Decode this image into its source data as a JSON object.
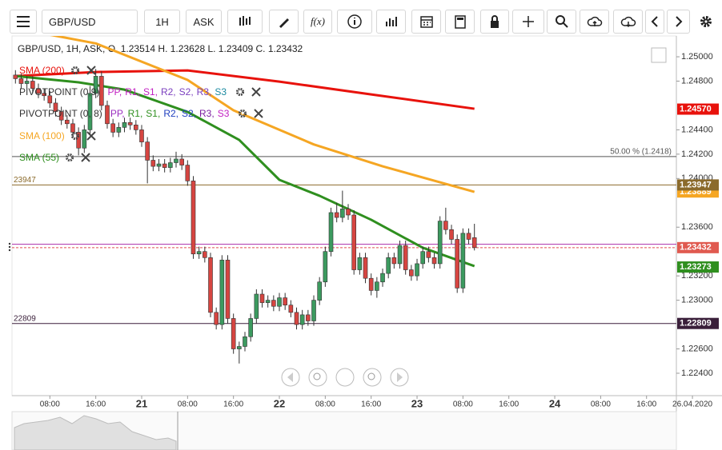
{
  "toolbar": {
    "symbol": "GBP/USD",
    "timeframe": "1H",
    "price_side": "ASK",
    "function_button": "f(x)"
  },
  "chart_data": {
    "type": "candlestick",
    "info_line": "GBP/USD, 1H, ASK,  O. 1.23514 H. 1.23628 L. 1.23409 C. 1.23432",
    "up_color": "#3c9a5f",
    "down_color": "#d64541",
    "xlim": [
      1.4,
      117.2
    ],
    "ylim": [
      1.22216,
      1.25171
    ],
    "yticks": [
      {
        "value": 1.25,
        "label": "1.25000"
      },
      {
        "value": 1.248,
        "label": "1.24800"
      },
      {
        "value": 1.244,
        "label": "1.24400"
      },
      {
        "value": 1.242,
        "label": "1.24200"
      },
      {
        "value": 1.24,
        "label": "1.24000"
      },
      {
        "value": 1.236,
        "label": "1.23600"
      },
      {
        "value": 1.232,
        "label": "1.23200"
      },
      {
        "value": 1.23,
        "label": "1.23000"
      },
      {
        "value": 1.226,
        "label": "1.22600"
      },
      {
        "value": 1.224,
        "label": "1.22400"
      }
    ],
    "xticks": [
      {
        "value": 8,
        "label": "08:00"
      },
      {
        "value": 16,
        "label": "16:00"
      },
      {
        "value": 24,
        "label": "21"
      },
      {
        "value": 32,
        "label": "08:00"
      },
      {
        "value": 40,
        "label": "16:00"
      },
      {
        "value": 48,
        "label": "22"
      },
      {
        "value": 56,
        "label": "08:00"
      },
      {
        "value": 64,
        "label": "16:00"
      },
      {
        "value": 72,
        "label": "23"
      },
      {
        "value": 80,
        "label": "08:00"
      },
      {
        "value": 88,
        "label": "16:00"
      },
      {
        "value": 96,
        "label": "24"
      },
      {
        "value": 104,
        "label": "08:00"
      },
      {
        "value": 112,
        "label": "16:00"
      },
      {
        "value": 120,
        "label": "26.04.2020"
      }
    ],
    "x": [
      2,
      3,
      4,
      5,
      6,
      7,
      8,
      9,
      10,
      11,
      12,
      13,
      14,
      15,
      16,
      17,
      18,
      19,
      20,
      21,
      22,
      23,
      24,
      25,
      26,
      27,
      28,
      29,
      30,
      31,
      32,
      33,
      34,
      35,
      36,
      37,
      38,
      39,
      40,
      41,
      42,
      43,
      44,
      45,
      46,
      47,
      48,
      49,
      50,
      51,
      52,
      53,
      54,
      55,
      56,
      57,
      58,
      59,
      60,
      61,
      62,
      63,
      64,
      65,
      66,
      67,
      68,
      69,
      70,
      71,
      72,
      73,
      74,
      75,
      76,
      77,
      78,
      79,
      80,
      81,
      82
    ],
    "candles": [
      [
        1.2485,
        1.2489,
        1.2478,
        1.2482
      ],
      [
        1.2482,
        1.2486,
        1.2474,
        1.2478
      ],
      [
        1.2478,
        1.2484,
        1.2474,
        1.248
      ],
      [
        1.248,
        1.2484,
        1.247,
        1.2474
      ],
      [
        1.2474,
        1.2478,
        1.2466,
        1.247
      ],
      [
        1.247,
        1.2474,
        1.2464,
        1.2468
      ],
      [
        1.2468,
        1.2472,
        1.2458,
        1.2462
      ],
      [
        1.2462,
        1.2466,
        1.2451,
        1.2455
      ],
      [
        1.2455,
        1.2459,
        1.2444,
        1.2448
      ],
      [
        1.2448,
        1.2452,
        1.2441,
        1.2445
      ],
      [
        1.2445,
        1.2449,
        1.2434,
        1.2438
      ],
      [
        1.2438,
        1.2442,
        1.2419,
        1.2425
      ],
      [
        1.2425,
        1.2444,
        1.2421,
        1.244
      ],
      [
        1.244,
        1.2476,
        1.2436,
        1.247
      ],
      [
        1.247,
        1.249,
        1.2466,
        1.2484
      ],
      [
        1.2484,
        1.2488,
        1.2456,
        1.246
      ],
      [
        1.246,
        1.2464,
        1.2441,
        1.2445
      ],
      [
        1.2445,
        1.2449,
        1.2434,
        1.2438
      ],
      [
        1.2438,
        1.2446,
        1.2434,
        1.2442
      ],
      [
        1.2442,
        1.245,
        1.2438,
        1.2446
      ],
      [
        1.2446,
        1.245,
        1.244,
        1.2444
      ],
      [
        1.2444,
        1.2448,
        1.2436,
        1.244
      ],
      [
        1.244,
        1.2444,
        1.2426,
        1.243
      ],
      [
        1.243,
        1.2434,
        1.2396,
        1.2415
      ],
      [
        1.2415,
        1.2419,
        1.2406,
        1.241
      ],
      [
        1.241,
        1.2416,
        1.2406,
        1.2412
      ],
      [
        1.2412,
        1.2416,
        1.2405,
        1.2409
      ],
      [
        1.2409,
        1.2417,
        1.2405,
        1.2413
      ],
      [
        1.2413,
        1.2422,
        1.2409,
        1.2416
      ],
      [
        1.2416,
        1.242,
        1.2407,
        1.2411
      ],
      [
        1.2411,
        1.2415,
        1.2394,
        1.2398
      ],
      [
        1.2398,
        1.2402,
        1.2334,
        1.2338
      ],
      [
        1.2338,
        1.2344,
        1.2334,
        1.234
      ],
      [
        1.234,
        1.2344,
        1.2331,
        1.2335
      ],
      [
        1.2335,
        1.2339,
        1.2286,
        1.229
      ],
      [
        1.229,
        1.2294,
        1.2276,
        1.228
      ],
      [
        1.228,
        1.2337,
        1.2276,
        1.2333
      ],
      [
        1.2333,
        1.2337,
        1.2281,
        1.2285
      ],
      [
        1.2285,
        1.2289,
        1.2256,
        1.226
      ],
      [
        1.226,
        1.2266,
        1.2248,
        1.2262
      ],
      [
        1.2262,
        1.2274,
        1.2258,
        1.227
      ],
      [
        1.227,
        1.2289,
        1.2266,
        1.2285
      ],
      [
        1.2285,
        1.2309,
        1.2281,
        1.2305
      ],
      [
        1.2305,
        1.2309,
        1.2294,
        1.2298
      ],
      [
        1.2298,
        1.2304,
        1.2294,
        1.23
      ],
      [
        1.23,
        1.2304,
        1.2291,
        1.2295
      ],
      [
        1.2295,
        1.2306,
        1.2291,
        1.2302
      ],
      [
        1.2302,
        1.2306,
        1.2292,
        1.2296
      ],
      [
        1.2296,
        1.23,
        1.2286,
        1.229
      ],
      [
        1.229,
        1.2294,
        1.2276,
        1.228
      ],
      [
        1.228,
        1.2292,
        1.2276,
        1.2288
      ],
      [
        1.2288,
        1.2292,
        1.2279,
        1.2283
      ],
      [
        1.2283,
        1.2304,
        1.2279,
        1.23
      ],
      [
        1.23,
        1.2319,
        1.2296,
        1.2315
      ],
      [
        1.2315,
        1.2344,
        1.2311,
        1.234
      ],
      [
        1.234,
        1.2376,
        1.2336,
        1.2372
      ],
      [
        1.2372,
        1.238,
        1.2364,
        1.2368
      ],
      [
        1.2368,
        1.239,
        1.2364,
        1.2375
      ],
      [
        1.2375,
        1.2379,
        1.2366,
        1.237
      ],
      [
        1.237,
        1.2374,
        1.2321,
        1.2325
      ],
      [
        1.2325,
        1.2339,
        1.2321,
        1.2335
      ],
      [
        1.2335,
        1.2339,
        1.2314,
        1.2318
      ],
      [
        1.2318,
        1.2322,
        1.2304,
        1.2308
      ],
      [
        1.2308,
        1.2319,
        1.2302,
        1.2315
      ],
      [
        1.2315,
        1.2326,
        1.2311,
        1.2322
      ],
      [
        1.2322,
        1.2339,
        1.2318,
        1.2335
      ],
      [
        1.2335,
        1.2339,
        1.2326,
        1.233
      ],
      [
        1.233,
        1.2349,
        1.2326,
        1.2345
      ],
      [
        1.2345,
        1.2349,
        1.2321,
        1.2325
      ],
      [
        1.2325,
        1.2329,
        1.2316,
        1.232
      ],
      [
        1.232,
        1.2334,
        1.2316,
        1.233
      ],
      [
        1.233,
        1.2344,
        1.2326,
        1.234
      ],
      [
        1.234,
        1.2344,
        1.2331,
        1.2335
      ],
      [
        1.2335,
        1.2339,
        1.2326,
        1.233
      ],
      [
        1.233,
        1.2369,
        1.2326,
        1.2365
      ],
      [
        1.2365,
        1.2376,
        1.2354,
        1.2358
      ],
      [
        1.2358,
        1.2362,
        1.2346,
        1.235
      ],
      [
        1.235,
        1.2354,
        1.2306,
        1.231
      ],
      [
        1.231,
        1.2359,
        1.2306,
        1.2355
      ],
      [
        1.2355,
        1.2359,
        1.2346,
        1.235
      ],
      [
        1.23514,
        1.23628,
        1.23409,
        1.23432
      ]
    ],
    "series": [
      {
        "name": "SMA (200)",
        "color": "#e8120c",
        "x": [
          2,
          16,
          32,
          48,
          64,
          82
        ],
        "values": [
          1.24842,
          1.24875,
          1.24888,
          1.24796,
          1.24691,
          1.24573
        ]
      },
      {
        "name": "SMA (100)",
        "color": "#f5a623",
        "x": [
          7,
          16,
          32,
          40,
          54,
          66,
          82
        ],
        "values": [
          1.2519,
          1.2511,
          1.2481,
          1.2456,
          1.2428,
          1.241,
          1.2389
        ]
      },
      {
        "name": "SMA (55)",
        "color": "#2f8f1f",
        "x": [
          2,
          13,
          21,
          32,
          41,
          48,
          55,
          64,
          73,
          82
        ],
        "values": [
          1.24842,
          1.2479,
          1.2473,
          1.24547,
          1.24317,
          1.23989,
          1.23858,
          1.23661,
          1.23431,
          1.2328
        ]
      }
    ],
    "pivot_indicators": [
      {
        "name": "PIVOTPOINT (0,9)",
        "items": [
          "PP,",
          "R1,",
          "S1,",
          "R2,",
          "S2,",
          "R3,",
          "S3"
        ],
        "colors": [
          "#c21fc2",
          "#c21fc2",
          "#c21fc2",
          "#7b3fbf",
          "#7b3fbf",
          "#7b3fbf",
          "#1b8aa0"
        ]
      },
      {
        "name": "PIVOTPOINT (0, 8)",
        "items": [
          "PP,",
          "R1,",
          "S1,",
          "R2,",
          "S2,",
          "R3,",
          "S3"
        ],
        "colors": [
          "#9b2fbf",
          "#2f8f1f",
          "#2f8f1f",
          "#1f3fbf",
          "#1f3fbf",
          "#7b1fa0",
          "#c21fc2"
        ]
      }
    ],
    "levels": [
      {
        "value": 1.2418,
        "label": "50.00 % (1.2418)",
        "color": "#555555"
      },
      {
        "value": 1.23947,
        "label": "23947",
        "color": "#8b6a2b"
      },
      {
        "value": 1.22809,
        "label": "22809",
        "color": "#3a1f3a"
      }
    ],
    "price_lines": [
      {
        "value": 1.2346,
        "color": "#b03ab0"
      },
      {
        "value": 1.23432,
        "color": "#e05050"
      }
    ],
    "price_labels": [
      {
        "value": 1.2457,
        "label": "1.24570",
        "color": "#e8120c"
      },
      {
        "value": 1.23889,
        "label": "1.23889",
        "color": "#f5a623"
      },
      {
        "value": 1.23947,
        "label": "1.23947",
        "color": "#8b6a2b"
      },
      {
        "value": 1.23432,
        "label": "1.23432",
        "color": "#e05a50"
      },
      {
        "value": 1.23273,
        "label": "1.23273",
        "color": "#2f8f1f"
      },
      {
        "value": 1.22809,
        "label": "1.22809",
        "color": "#3a1f3a"
      }
    ]
  }
}
